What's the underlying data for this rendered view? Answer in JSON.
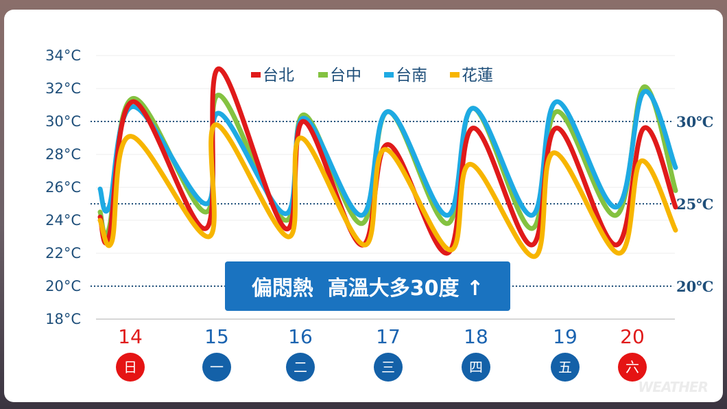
{
  "chart_data": {
    "type": "line",
    "title": "",
    "xlabel": "",
    "ylabel": "",
    "ylim": [
      18,
      34
    ],
    "y_ticks": [
      "34°C",
      "32°C",
      "30°C",
      "28°C",
      "26°C",
      "24°C",
      "22°C",
      "20°C",
      "18°C"
    ],
    "reference_lines": [
      {
        "value": 30,
        "label": "30℃"
      },
      {
        "value": 25,
        "label": "25℃"
      },
      {
        "value": 20,
        "label": "20℃"
      }
    ],
    "legend_placement": "top-center",
    "days": [
      {
        "date": "14",
        "weekday": "日",
        "weekend": true
      },
      {
        "date": "15",
        "weekday": "一",
        "weekend": false
      },
      {
        "date": "16",
        "weekday": "二",
        "weekend": false
      },
      {
        "date": "17",
        "weekday": "三",
        "weekend": false
      },
      {
        "date": "18",
        "weekday": "四",
        "weekend": false
      },
      {
        "date": "19",
        "weekday": "五",
        "weekend": false
      },
      {
        "date": "20",
        "weekday": "六",
        "weekend": true
      }
    ],
    "series": [
      {
        "name": "台北",
        "color": "#e01a1a",
        "lows": [
          23.0,
          23.5,
          23.5,
          22.5,
          22.0,
          22.5,
          22.5
        ],
        "highs": [
          31.2,
          33.2,
          30.0,
          28.6,
          29.6,
          29.6,
          29.6
        ],
        "end": 24.8
      },
      {
        "name": "台中",
        "color": "#84c241",
        "lows": [
          23.5,
          24.5,
          24.0,
          23.8,
          23.8,
          23.5,
          24.3
        ],
        "highs": [
          31.4,
          31.6,
          30.4,
          30.6,
          30.8,
          30.6,
          32.1
        ],
        "end": 25.8
      },
      {
        "name": "台南",
        "color": "#1eaae3",
        "lows": [
          24.8,
          25.0,
          24.4,
          24.3,
          24.3,
          24.3,
          24.8
        ],
        "highs": [
          30.9,
          30.5,
          30.2,
          30.6,
          30.8,
          31.2,
          31.8
        ],
        "end": 27.2
      },
      {
        "name": "花蓮",
        "color": "#f7b500",
        "lows": [
          22.7,
          23.0,
          23.0,
          22.5,
          22.2,
          21.8,
          22.0
        ],
        "highs": [
          29.1,
          29.8,
          29.0,
          28.3,
          27.4,
          28.1,
          27.6
        ],
        "end": 23.4
      }
    ]
  },
  "banner": {
    "text": "偏悶熱  高溫大多30度 ↑"
  },
  "colors": {
    "weekend": "#e01a1a",
    "weekday": "#1a63b0",
    "axis_text": "#1f4f7a"
  }
}
